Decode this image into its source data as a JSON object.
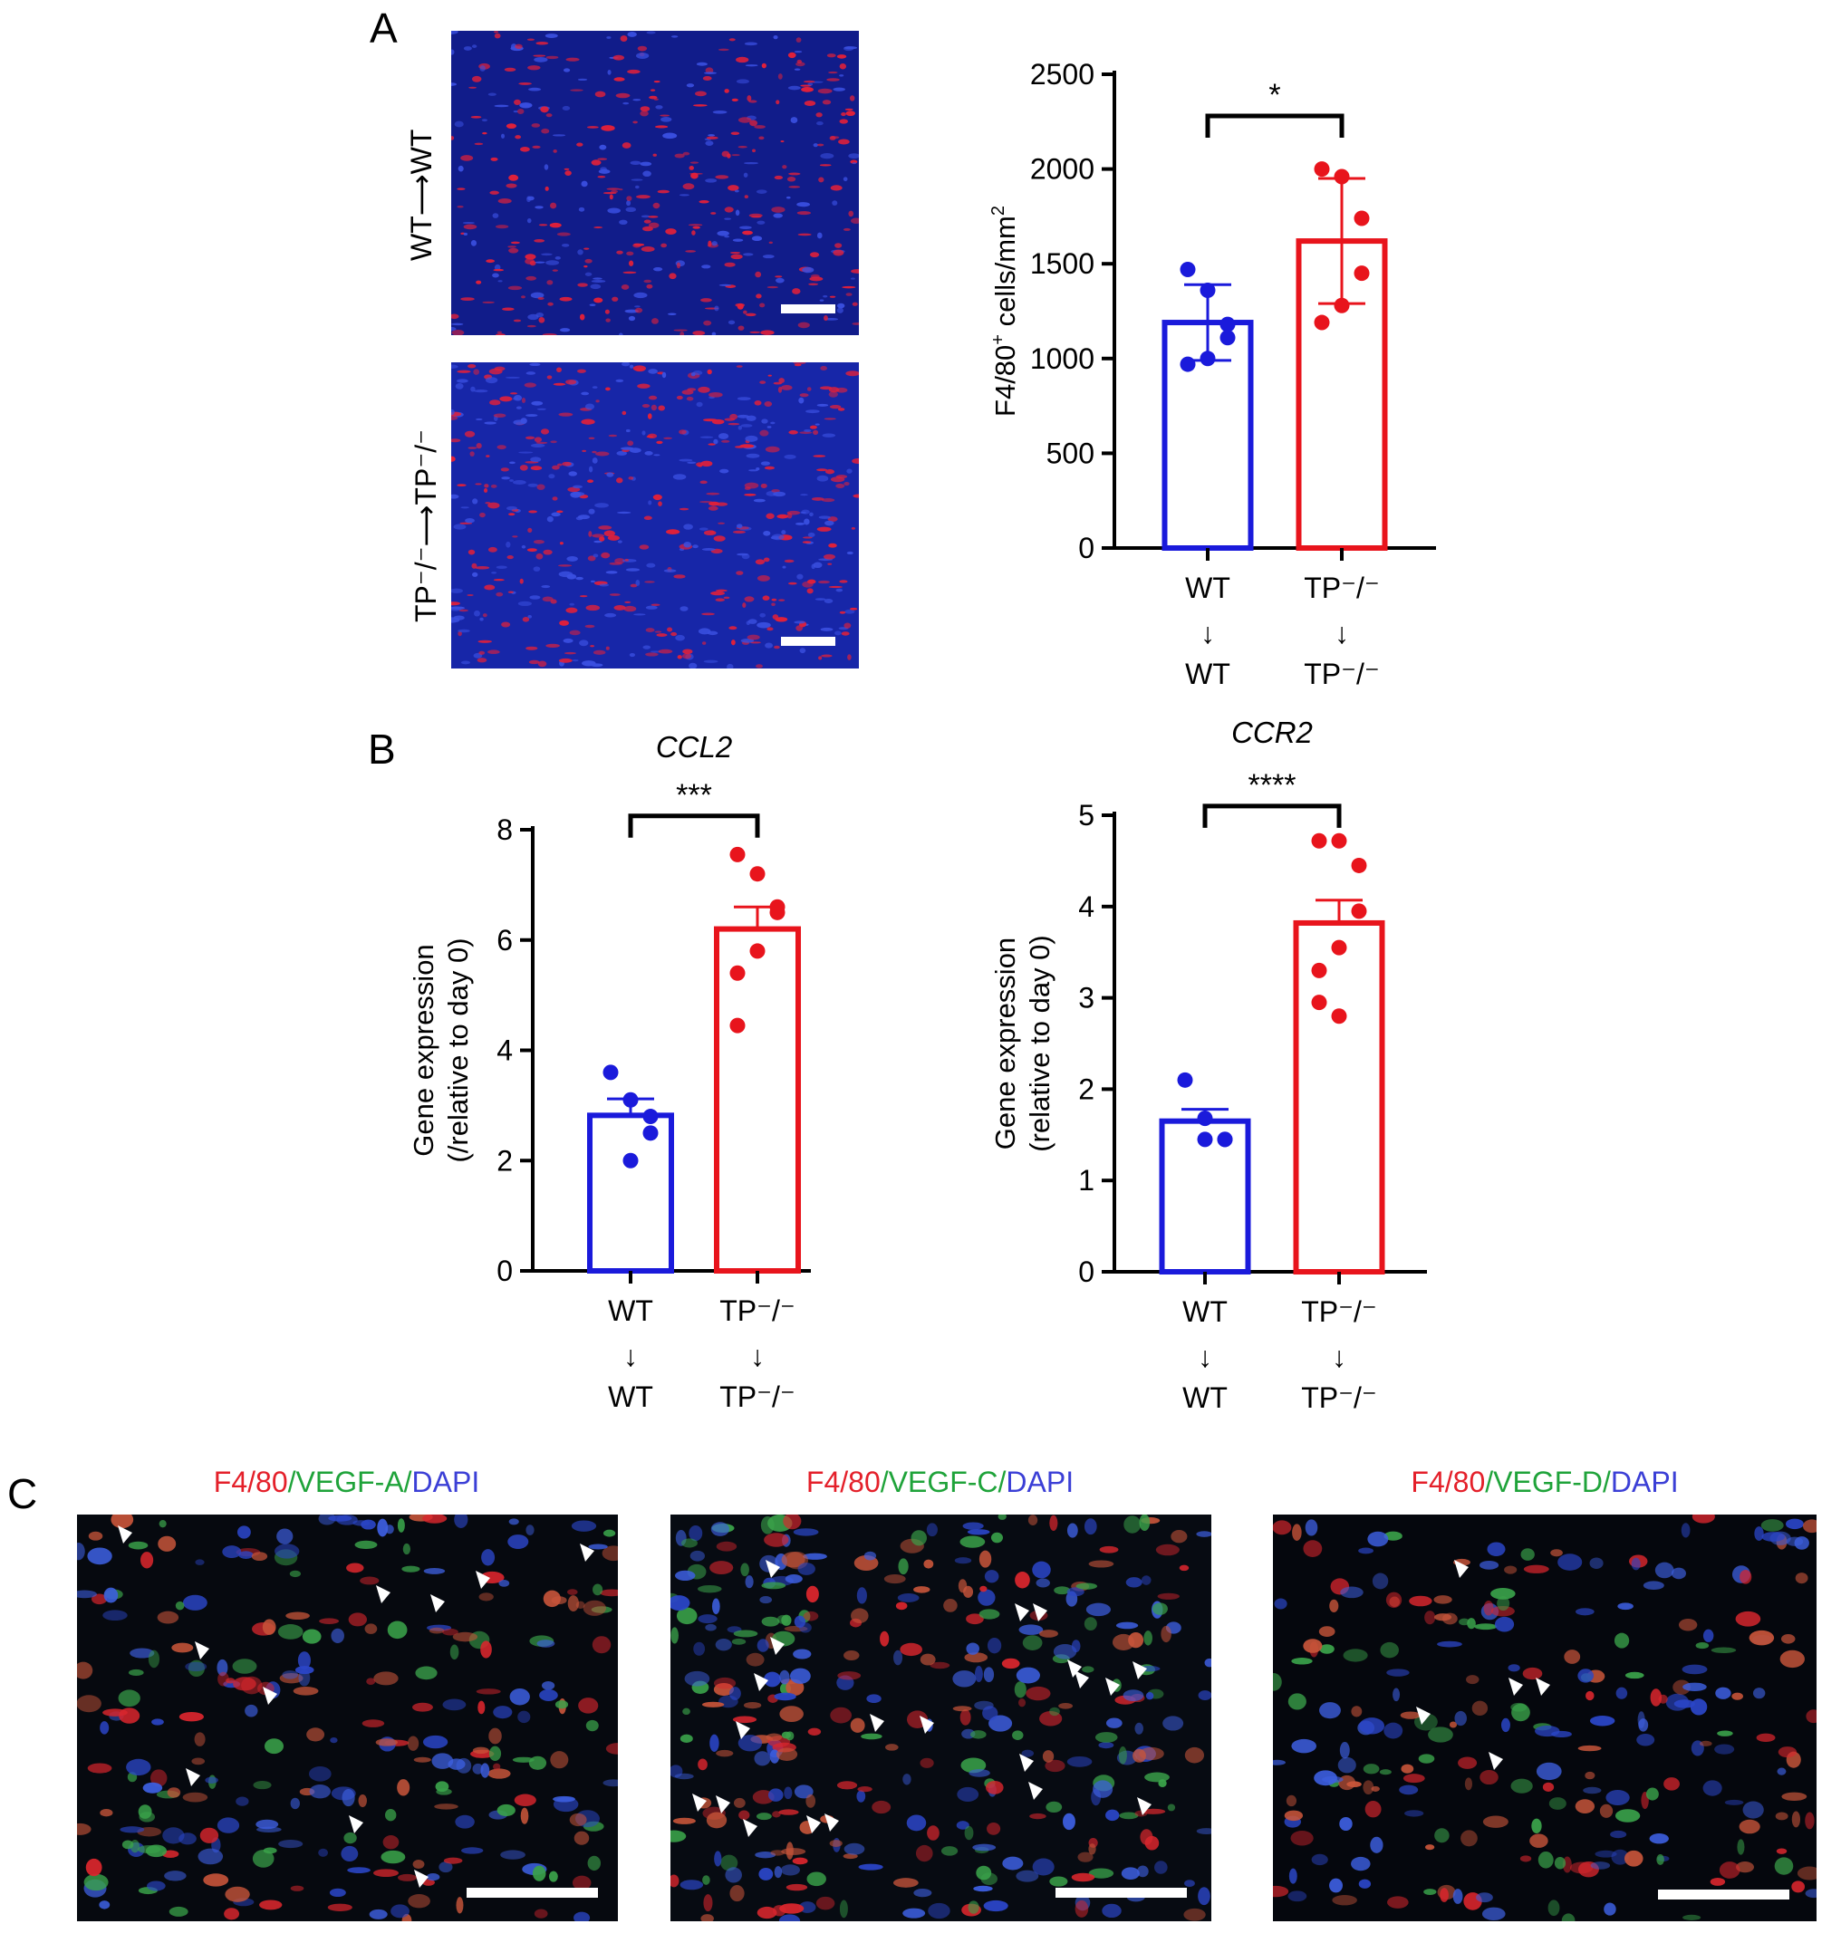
{
  "panels": {
    "A": {
      "letter": "A",
      "row_labels": [
        "WT⟶WT",
        "TP⁻/⁻⟶TP⁻/⁻"
      ]
    },
    "B": {
      "letter": "B"
    },
    "C": {
      "letter": "C",
      "images": [
        {
          "parts": [
            "F4/80",
            "/",
            "VEGF-A",
            "/",
            "DAPI"
          ]
        },
        {
          "parts": [
            "F4/80",
            "/",
            "VEGF-C",
            "/",
            "DAPI"
          ]
        },
        {
          "parts": [
            "F4/80",
            "/",
            "VEGF-D",
            "/",
            "DAPI"
          ]
        }
      ]
    }
  },
  "colors": {
    "wt": "#1a1adb",
    "tp": "#e8141c",
    "bracket": "#000000"
  },
  "chart_data": [
    {
      "id": "a",
      "type": "bar",
      "title": "",
      "ylabel_parts": [
        "F4/80",
        "+",
        " cells/mm",
        "2"
      ],
      "ylim": [
        0,
        2500
      ],
      "yticks": [
        0,
        500,
        1000,
        1500,
        2000,
        2500
      ],
      "categories": [
        {
          "top": "WT",
          "arrow": "↓",
          "bottom": "WT"
        },
        {
          "top": "TP⁻/⁻",
          "arrow": "↓",
          "bottom": "TP⁻/⁻"
        }
      ],
      "values": [
        1190,
        1620
      ],
      "errors": [
        200,
        330
      ],
      "points": [
        [
          1470,
          1360,
          1180,
          1110,
          1000,
          970
        ],
        [
          2000,
          1960,
          1740,
          1450,
          1280,
          1190
        ]
      ],
      "significance": "*",
      "bracket_y": 2280
    },
    {
      "id": "b1",
      "type": "bar",
      "title": "CCL2",
      "ylabel": [
        "Gene expression",
        "(/relative to day 0)"
      ],
      "ylim": [
        0,
        8
      ],
      "yticks": [
        0,
        2,
        4,
        6,
        8
      ],
      "categories": [
        {
          "top": "WT",
          "arrow": "↓",
          "bottom": "WT"
        },
        {
          "top": "TP⁻/⁻",
          "arrow": "↓",
          "bottom": "TP⁻/⁻"
        }
      ],
      "values": [
        2.82,
        6.2
      ],
      "errors": [
        0.3,
        0.4
      ],
      "points": [
        [
          3.6,
          3.1,
          2.8,
          2.5,
          2.0
        ],
        [
          7.55,
          7.2,
          6.6,
          6.5,
          5.8,
          5.4,
          4.45
        ]
      ],
      "significance": "***",
      "bracket_y": 8.25
    },
    {
      "id": "b2",
      "type": "bar",
      "title": "CCR2",
      "ylabel": [
        "Gene expression",
        "(relative to day 0)"
      ],
      "ylim": [
        0,
        5
      ],
      "yticks": [
        0,
        1,
        2,
        3,
        4,
        5
      ],
      "categories": [
        {
          "top": "WT",
          "arrow": "↓",
          "bottom": "WT"
        },
        {
          "top": "TP⁻/⁻",
          "arrow": "↓",
          "bottom": "TP⁻/⁻"
        }
      ],
      "values": [
        1.65,
        3.82
      ],
      "errors": [
        0.13,
        0.25
      ],
      "points": [
        [
          2.1,
          1.68,
          1.45,
          1.45,
          1.45
        ],
        [
          4.72,
          4.72,
          4.45,
          3.95,
          3.55,
          3.3,
          2.95,
          2.8
        ]
      ],
      "significance": "****",
      "bracket_y": 5.1
    }
  ]
}
